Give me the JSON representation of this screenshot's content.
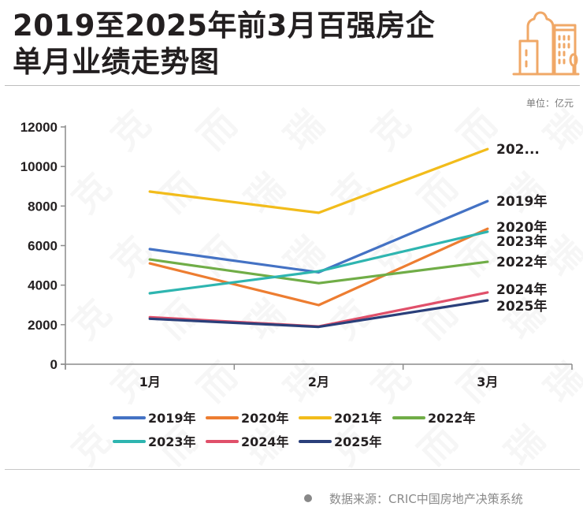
{
  "header": {
    "title_line1": "2019至2025年前3月百强房企",
    "title_line2": "单月业绩走势图",
    "logo_icon": "city-buildings-icon",
    "unit": "单位：亿元"
  },
  "footer": {
    "source": "数据来源：CRIC中国房地产决策系统"
  },
  "watermark_text": "克而瑞",
  "chart_data": {
    "type": "line",
    "title": "2019至2025年前3月百强房企单月业绩走势图",
    "xlabel": "",
    "ylabel": "",
    "unit": "亿元",
    "categories": [
      "1月",
      "2月",
      "3月"
    ],
    "ylim": [
      0,
      12000
    ],
    "yticks": [
      0,
      2000,
      4000,
      6000,
      8000,
      10000,
      12000
    ],
    "grid": false,
    "legend_position": "bottom",
    "series": [
      {
        "name": "2019年",
        "end_label": "2019年",
        "color": "#4472C4",
        "values": [
          5820,
          4650,
          8250
        ]
      },
      {
        "name": "2020年",
        "end_label": "2020年",
        "color": "#ED7D31",
        "values": [
          5100,
          2990,
          6850
        ]
      },
      {
        "name": "2021年",
        "end_label": "202...",
        "color": "#F2BC1B",
        "values": [
          8730,
          7660,
          10880
        ]
      },
      {
        "name": "2022年",
        "end_label": "2022年",
        "color": "#70AD47",
        "values": [
          5300,
          4100,
          5180
        ]
      },
      {
        "name": "2023年",
        "end_label": "2023年",
        "color": "#2EB5B0",
        "values": [
          3590,
          4700,
          6700
        ]
      },
      {
        "name": "2024年",
        "end_label": "2024年",
        "color": "#E0506A",
        "values": [
          2380,
          1910,
          3630
        ]
      },
      {
        "name": "2025年",
        "end_label": "2025年",
        "color": "#2A3F7A",
        "values": [
          2300,
          1890,
          3230
        ]
      }
    ]
  }
}
